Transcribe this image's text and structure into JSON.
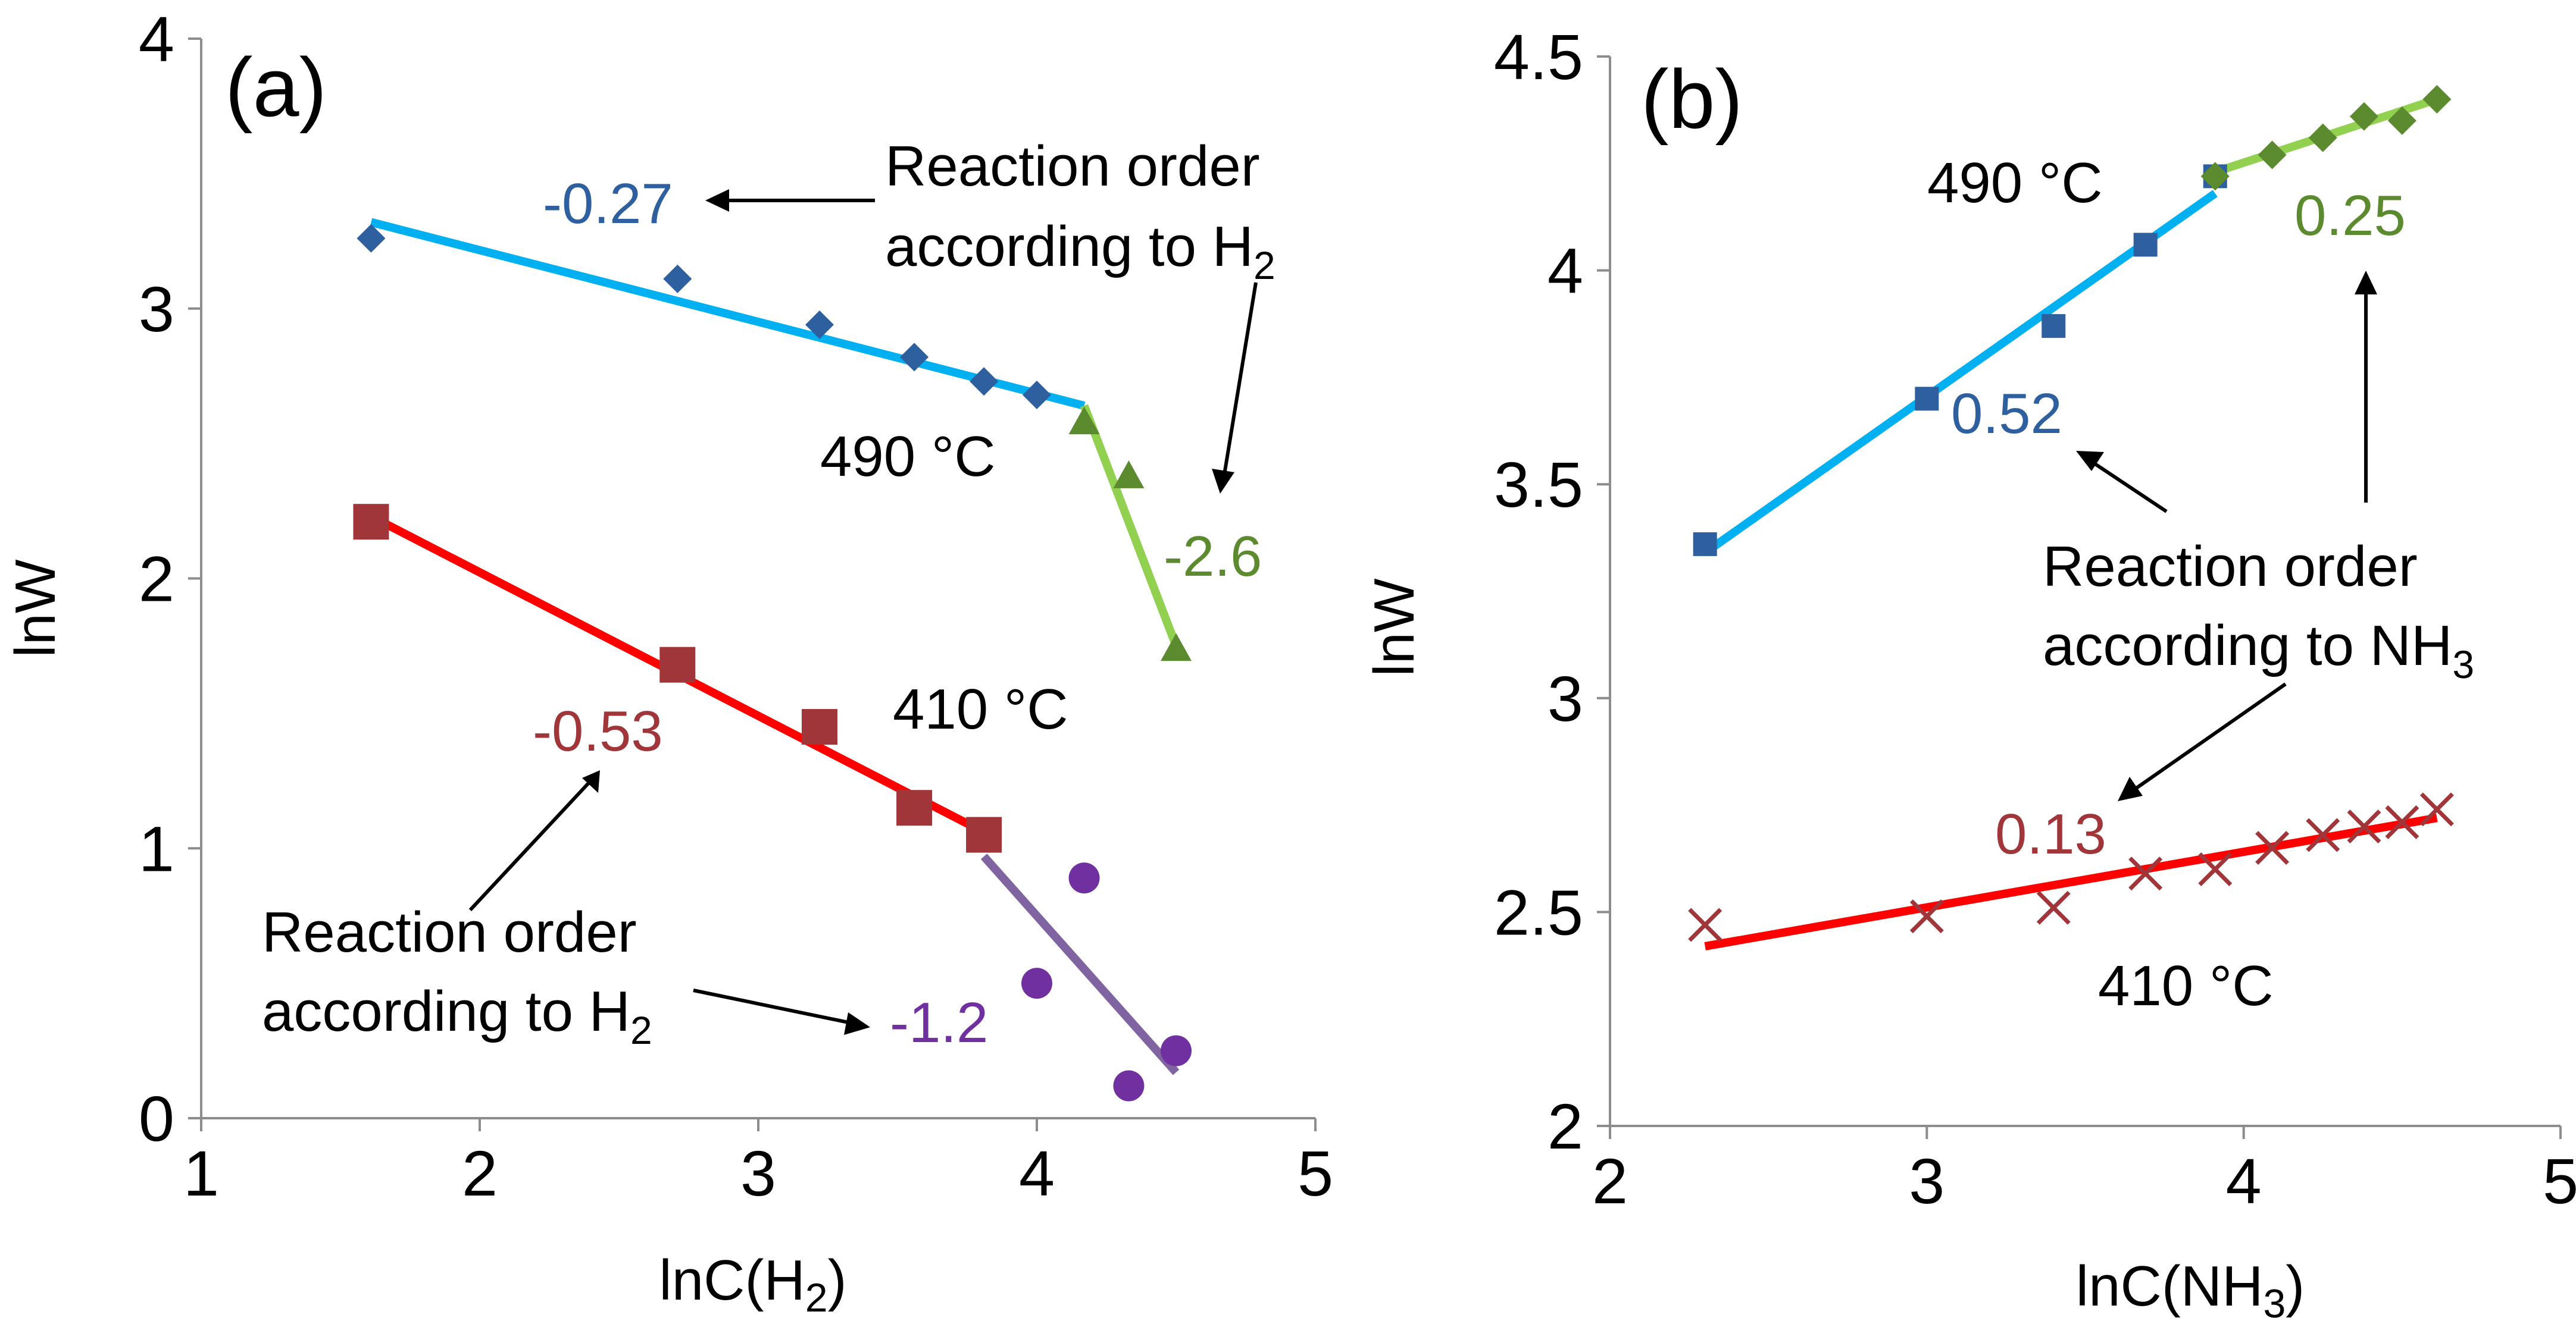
{
  "chart_data": [
    {
      "type": "scatter",
      "panel_label": "(a)",
      "xlabel": "lnC(H2)",
      "xlabel_main": "lnC(H",
      "xlabel_sub": "2",
      "xlabel_end": ")",
      "ylabel": "lnW",
      "xlim": [
        1,
        5
      ],
      "ylim": [
        0,
        4
      ],
      "xticks": [
        "1",
        "2",
        "3",
        "4",
        "5"
      ],
      "yticks": [
        "0",
        "1",
        "2",
        "3",
        "4"
      ],
      "grid": false,
      "series": [
        {
          "marker": "diamond",
          "color": "#2e5f9e",
          "points": [
            [
              1.61,
              3.26
            ],
            [
              2.71,
              3.11
            ],
            [
              3.22,
              2.94
            ],
            [
              3.56,
              2.82
            ],
            [
              3.81,
              2.73
            ],
            [
              4.0,
              2.68
            ]
          ]
        },
        {
          "marker": "triangle",
          "color": "#5c8a2e",
          "points": [
            [
              4.17,
              2.58
            ],
            [
              4.33,
              2.38
            ],
            [
              4.5,
              1.74
            ]
          ]
        },
        {
          "marker": "square",
          "color": "#a0363a",
          "points": [
            [
              1.61,
              2.21
            ],
            [
              2.71,
              1.68
            ],
            [
              3.22,
              1.45
            ],
            [
              3.56,
              1.15
            ],
            [
              3.81,
              1.05
            ]
          ]
        },
        {
          "marker": "circle",
          "color": "#7030a0",
          "points": [
            [
              4.0,
              0.5
            ],
            [
              4.17,
              0.89
            ],
            [
              4.33,
              0.12
            ],
            [
              4.5,
              0.25
            ]
          ]
        }
      ],
      "fits": [
        {
          "color": "#00b0f0",
          "from": [
            1.61,
            3.32
          ],
          "to": [
            4.17,
            2.64
          ]
        },
        {
          "color": "#92d050",
          "from": [
            4.17,
            2.64
          ],
          "to": [
            4.5,
            1.75
          ]
        },
        {
          "color": "#ff0000",
          "from": [
            1.61,
            2.23
          ],
          "to": [
            3.81,
            1.06
          ]
        },
        {
          "color": "#8064a2",
          "from": [
            3.81,
            0.97
          ],
          "to": [
            4.5,
            0.17
          ]
        }
      ],
      "slope_labels": [
        {
          "text": "-0.27",
          "color": "#2e5f9e"
        },
        {
          "text": "-2.6",
          "color": "#5c8a2e"
        },
        {
          "text": "-0.53",
          "color": "#a0363a"
        },
        {
          "text": "-1.2",
          "color": "#7030a0"
        }
      ],
      "annotations": {
        "temp_high": "490 °C",
        "temp_low": "410 °C",
        "order_top_line1": "Reaction order",
        "order_top_line2": "according to H",
        "order_top_sub": "2",
        "order_bottom_line1": "Reaction order",
        "order_bottom_line2": "according to H",
        "order_bottom_sub": "2"
      }
    },
    {
      "type": "scatter",
      "panel_label": "(b)",
      "xlabel": "lnC(NH3)",
      "xlabel_main": "lnC(NH",
      "xlabel_sub": "3",
      "xlabel_end": ")",
      "ylabel": "lnW",
      "xlim": [
        2,
        5
      ],
      "ylim": [
        2,
        4.5
      ],
      "xticks": [
        "2",
        "3",
        "4",
        "5"
      ],
      "yticks": [
        "2",
        "2.5",
        "3",
        "3.5",
        "4",
        "4.5"
      ],
      "grid": false,
      "series": [
        {
          "marker": "square",
          "color": "#2e5f9e",
          "points": [
            [
              2.3,
              3.36
            ],
            [
              3.0,
              3.7
            ],
            [
              3.4,
              3.87
            ],
            [
              3.69,
              4.06
            ],
            [
              3.91,
              4.22
            ]
          ]
        },
        {
          "marker": "diamond",
          "color": "#5c8a2e",
          "points": [
            [
              3.91,
              4.22
            ],
            [
              4.09,
              4.27
            ],
            [
              4.25,
              4.31
            ],
            [
              4.38,
              4.36
            ],
            [
              4.5,
              4.35
            ],
            [
              4.61,
              4.4
            ]
          ]
        },
        {
          "marker": "x",
          "color": "#a0363a",
          "points": [
            [
              2.3,
              2.47
            ],
            [
              3.0,
              2.49
            ],
            [
              3.4,
              2.51
            ],
            [
              3.69,
              2.59
            ],
            [
              3.91,
              2.6
            ],
            [
              4.09,
              2.65
            ],
            [
              4.25,
              2.68
            ],
            [
              4.38,
              2.7
            ],
            [
              4.5,
              2.71
            ],
            [
              4.61,
              2.74
            ]
          ]
        }
      ],
      "fits": [
        {
          "color": "#00b0f0",
          "from": [
            2.3,
            3.34
          ],
          "to": [
            3.91,
            4.18
          ]
        },
        {
          "color": "#92d050",
          "from": [
            3.91,
            4.23
          ],
          "to": [
            4.61,
            4.4
          ]
        },
        {
          "color": "#ff0000",
          "from": [
            2.3,
            2.42
          ],
          "to": [
            4.61,
            2.72
          ]
        }
      ],
      "slope_labels": [
        {
          "text": "0.52",
          "color": "#2e5f9e"
        },
        {
          "text": "0.25",
          "color": "#5c8a2e"
        },
        {
          "text": "0.13",
          "color": "#a0363a"
        }
      ],
      "annotations": {
        "temp_high": "490 °C",
        "temp_low": "410 °C",
        "order_line1": "Reaction order",
        "order_line2": "according to NH",
        "order_sub": "3"
      }
    }
  ]
}
